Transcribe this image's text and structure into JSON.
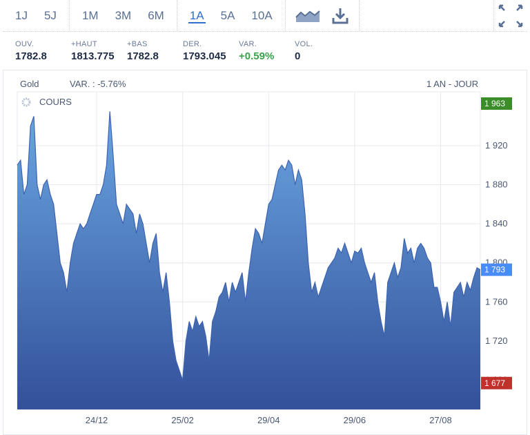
{
  "toolbar": {
    "periods_a": [
      {
        "label": "1J"
      },
      {
        "label": "5J"
      }
    ],
    "periods_b": [
      {
        "label": "1M"
      },
      {
        "label": "3M"
      },
      {
        "label": "6M"
      }
    ],
    "periods_c": [
      {
        "label": "1A",
        "active": true
      },
      {
        "label": "5A"
      },
      {
        "label": "10A"
      }
    ],
    "icons": [
      "area-chart-icon",
      "download-icon",
      "fullscreen-icon"
    ]
  },
  "stats": [
    {
      "label": "OUV.",
      "value": "1782.8"
    },
    {
      "label": "+HAUT",
      "value": "1813.775"
    },
    {
      "label": "+BAS",
      "value": "1782.8"
    },
    {
      "label": "DER.",
      "value": "1793.045"
    },
    {
      "label": "VAR.",
      "value": "+0.59%",
      "positive": true
    },
    {
      "label": "VOL.",
      "value": "0"
    }
  ],
  "chart_header": {
    "instrument": "Gold",
    "variation": "VAR. : -5.76%",
    "period": "1 AN - JOUR",
    "series_label": "COURS"
  },
  "colors": {
    "accent": "#2f6fd1",
    "area_top": "#6aa6e0",
    "area_bottom": "#33509a",
    "max_badge": "#3a8d28",
    "last_badge": "#4a8cf7",
    "min_badge": "#c0312b",
    "positive": "#3aa04a"
  },
  "chart_data": {
    "type": "area",
    "title": "Gold",
    "y_ticks": [
      "1 920",
      "1 880",
      "1 840",
      "1 800",
      "1 760",
      "1 720",
      "1 680"
    ],
    "y_tick_values": [
      1920,
      1880,
      1840,
      1800,
      1760,
      1720,
      1680
    ],
    "x_ticks": [
      "24/12",
      "25/02",
      "29/04",
      "29/06",
      "27/08"
    ],
    "x_tick_index": [
      24,
      50,
      76,
      102,
      128
    ],
    "ylim": [
      1650,
      1975
    ],
    "markers": {
      "max": "1 963",
      "last": "1 793",
      "min": "1 677"
    },
    "marker_values": {
      "max": 1963,
      "last": 1793,
      "min": 1677
    },
    "grid": true,
    "series": [
      {
        "values": [
          1900,
          1905,
          1870,
          1880,
          1940,
          1950,
          1880,
          1865,
          1880,
          1885,
          1870,
          1860,
          1830,
          1800,
          1790,
          1770,
          1800,
          1820,
          1830,
          1840,
          1835,
          1840,
          1850,
          1860,
          1870,
          1870,
          1880,
          1900,
          1955,
          1910,
          1860,
          1850,
          1840,
          1860,
          1855,
          1850,
          1830,
          1850,
          1840,
          1820,
          1800,
          1820,
          1830,
          1790,
          1770,
          1790,
          1760,
          1720,
          1700,
          1690,
          1680,
          1720,
          1740,
          1730,
          1745,
          1735,
          1740,
          1725,
          1700,
          1740,
          1750,
          1765,
          1770,
          1780,
          1760,
          1780,
          1770,
          1780,
          1790,
          1760,
          1790,
          1815,
          1835,
          1830,
          1820,
          1840,
          1860,
          1865,
          1880,
          1895,
          1900,
          1895,
          1905,
          1900,
          1880,
          1895,
          1885,
          1850,
          1800,
          1770,
          1780,
          1765,
          1775,
          1785,
          1795,
          1800,
          1805,
          1815,
          1810,
          1820,
          1810,
          1800,
          1812,
          1810,
          1815,
          1800,
          1790,
          1780,
          1790,
          1760,
          1740,
          1725,
          1780,
          1790,
          1800,
          1785,
          1795,
          1825,
          1810,
          1815,
          1800,
          1815,
          1820,
          1815,
          1805,
          1800,
          1775,
          1775,
          1760,
          1740,
          1760,
          1735,
          1770,
          1775,
          1780,
          1765,
          1780,
          1772,
          1785,
          1795,
          1793
        ]
      }
    ]
  }
}
